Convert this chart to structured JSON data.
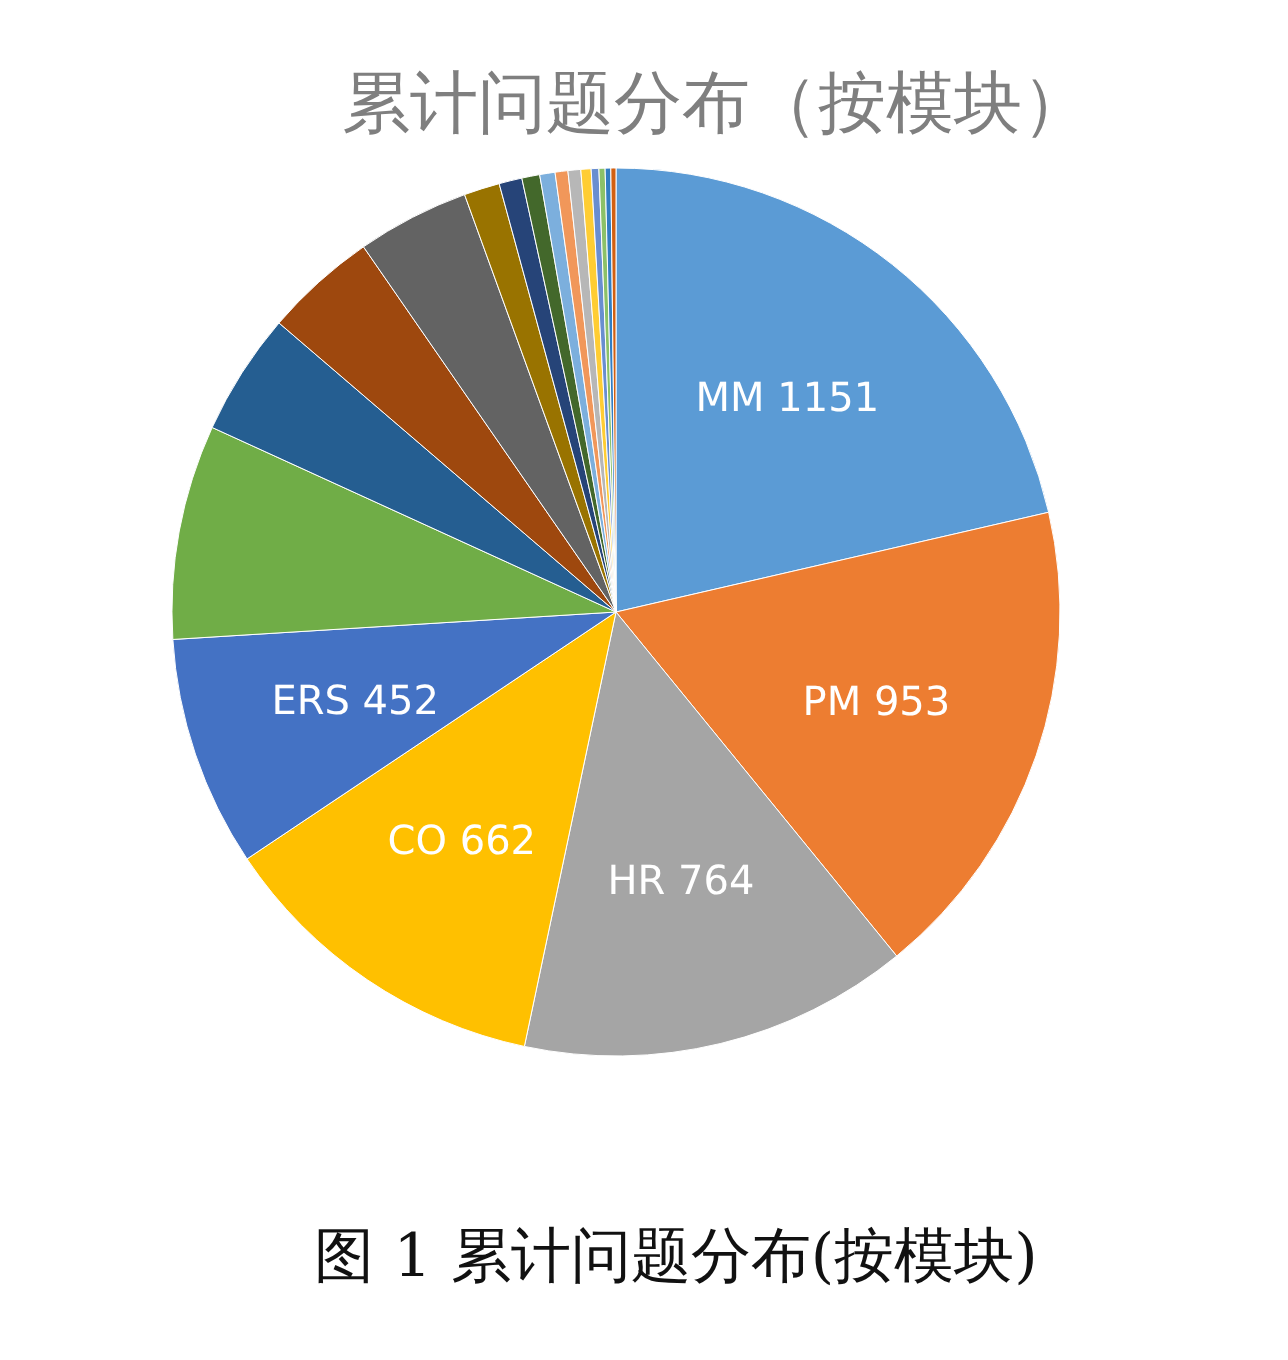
{
  "chart_data": {
    "type": "pie",
    "title": "累计问题分布（按模块）",
    "categories": [
      "MM",
      "PM",
      "HR",
      "CO",
      "ERS",
      null,
      null,
      null,
      null,
      null,
      null,
      null,
      null,
      null,
      null,
      null,
      null,
      null,
      null,
      null
    ],
    "values": [
      1151,
      953,
      764,
      662,
      452,
      420,
      240,
      220,
      220,
      70,
      45,
      35,
      30,
      25,
      25,
      20,
      15,
      12,
      11,
      10
    ],
    "value_labels": [
      "1151",
      "953",
      "764",
      "662",
      "452",
      null,
      null,
      null,
      null,
      null,
      null,
      null,
      null,
      null,
      null,
      null,
      null,
      null,
      null,
      null
    ],
    "colors": [
      "#5b9bd5",
      "#ed7d31",
      "#a5a5a5",
      "#ffc000",
      "#4472c4",
      "#70ad47",
      "#255e91",
      "#9e480e",
      "#636363",
      "#997300",
      "#264478",
      "#43682b",
      "#7cafdd",
      "#f1975a",
      "#b7b7b7",
      "#ffcd33",
      "#698ed0",
      "#8cc168",
      "#327dc2",
      "#d26012"
    ],
    "annotations": [
      "图 1 累计问题分布(按模块)"
    ]
  }
}
